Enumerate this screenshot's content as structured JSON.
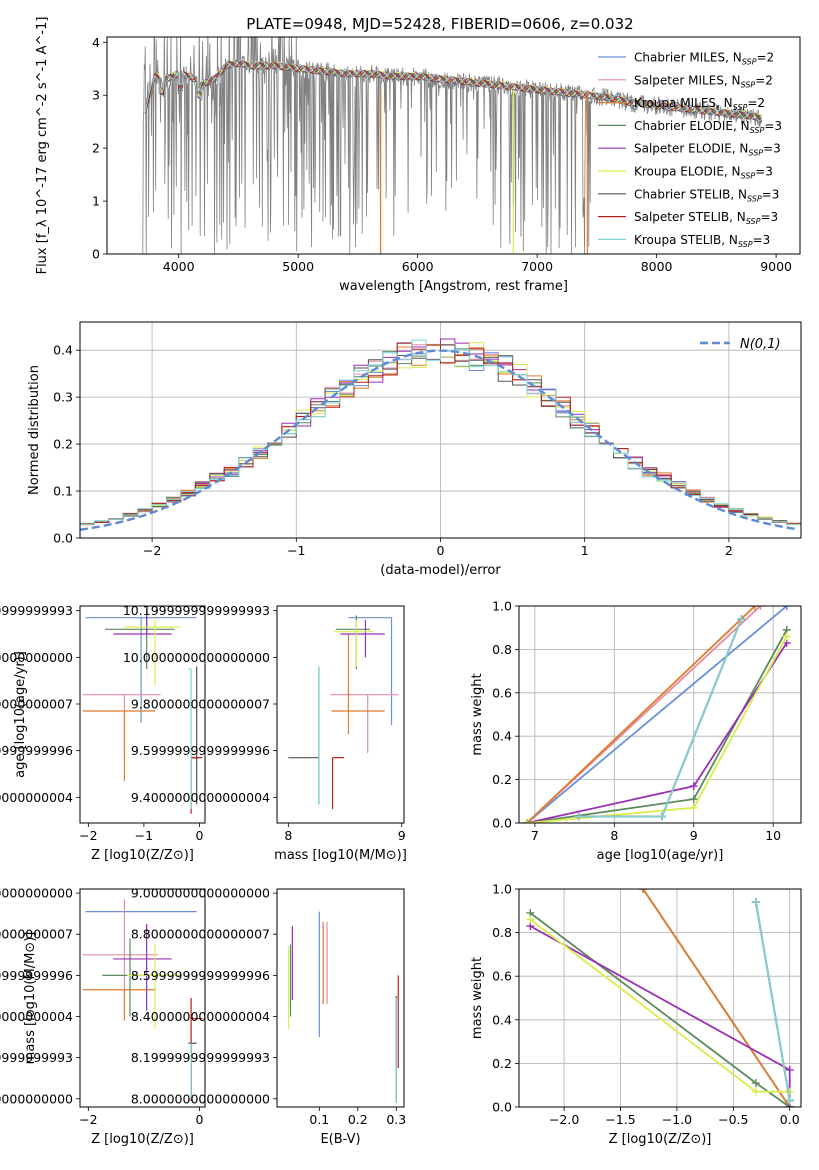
{
  "figure": {
    "title": "PLATE=0948, MJD=52428, FIBERID=0606, z=0.032",
    "models": [
      {
        "name": "Chabrier MILES",
        "nssp": "2",
        "color": "#6a8fdc"
      },
      {
        "name": "Salpeter MILES",
        "nssp": "2",
        "color": "#e88aa6"
      },
      {
        "name": "Kroupa MILES",
        "nssp": "2",
        "color": "#e07b2a"
      },
      {
        "name": "Chabrier ELODIE",
        "nssp": "3",
        "color": "#5c8a5c"
      },
      {
        "name": "Salpeter ELODIE",
        "nssp": "3",
        "color": "#9a2fb5"
      },
      {
        "name": "Kroupa ELODIE",
        "nssp": "3",
        "color": "#d8ee4a"
      },
      {
        "name": "Chabrier STELIB",
        "nssp": "3",
        "color": "#555555"
      },
      {
        "name": "Salpeter STELIB",
        "nssp": "3",
        "color": "#b81e1e"
      },
      {
        "name": "Kroupa STELIB",
        "nssp": "3",
        "color": "#7fd6d8"
      }
    ]
  },
  "chart_data": [
    {
      "id": "spectrum",
      "type": "line",
      "title": "PLATE=0948, MJD=52428, FIBERID=0606, z=0.032",
      "xlabel": "wavelength [Angstrom, rest frame]",
      "ylabel": "Flux [f_λ 10^-17 erg cm^-2 s^-1 A^-1]",
      "xlim": [
        3400,
        9200
      ],
      "ylim": [
        0,
        4.1
      ],
      "xticks": [
        4000,
        5000,
        6000,
        7000,
        8000,
        9000
      ],
      "yticks": [
        0,
        1,
        2,
        3,
        4
      ],
      "legend": "top-right",
      "data_color": "#808080",
      "model_continuum": {
        "x": [
          3720,
          3800,
          3900,
          4000,
          4100,
          4200,
          4300,
          4400,
          4500,
          4600,
          4800,
          5000,
          5200,
          5400,
          5600,
          5800,
          6000,
          6200,
          6400,
          6600,
          6800,
          7000,
          7200,
          7400,
          7600,
          7800,
          8000,
          8200,
          8400,
          8600,
          8800,
          8880
        ],
        "y": [
          2.7,
          3.35,
          3.3,
          3.4,
          3.35,
          3.2,
          3.3,
          3.55,
          3.6,
          3.55,
          3.55,
          3.5,
          3.45,
          3.4,
          3.4,
          3.35,
          3.35,
          3.3,
          3.25,
          3.2,
          3.15,
          3.1,
          3.05,
          3.0,
          2.95,
          2.85,
          2.8,
          2.75,
          2.7,
          2.65,
          2.6,
          2.55
        ]
      },
      "drop_lines": [
        {
          "x": 5690,
          "color": "#e07b2a"
        },
        {
          "x": 7420,
          "color": "#e07b2a"
        },
        {
          "x": 6800,
          "color": "#d8ee4a"
        }
      ]
    },
    {
      "id": "residuals",
      "type": "histogram",
      "xlabel": "(data-model)/error",
      "ylabel": "Normed distribution",
      "xlim": [
        -2.5,
        2.5
      ],
      "ylim": [
        0,
        0.46
      ],
      "xticks": [
        -2,
        -1,
        0,
        1,
        2
      ],
      "yticks": [
        0.0,
        0.1,
        0.2,
        0.3,
        0.4
      ],
      "bin_width": 0.1,
      "grid": true,
      "legend": "top-right",
      "reference_label": "N(0,1)",
      "reference_color": "#5b8bd6"
    },
    {
      "id": "age-vs-Z",
      "type": "errorbar",
      "xlabel": "Z [log10(Z/Z⊙)]",
      "ylabel": "age [log10(age/yr)]",
      "xlim": [
        -2.15,
        0.1
      ],
      "ylim": [
        9.29,
        10.22
      ],
      "xticks": [
        -2,
        -1,
        0
      ],
      "yticks": [
        9.4,
        9.6,
        9.8,
        10.0,
        10.2
      ],
      "points": [
        {
          "model": 0,
          "x": -1.05,
          "xerr": [
            1.0,
            1.0
          ],
          "y": 10.17,
          "yerr": [
            0.45,
            0.0
          ]
        },
        {
          "model": 1,
          "x": -1.35,
          "xerr": [
            0.75,
            0.65
          ],
          "y": 9.84,
          "yerr": [
            0.26,
            0.0
          ]
        },
        {
          "model": 2,
          "x": -1.35,
          "xerr": [
            0.75,
            0.55
          ],
          "y": 9.77,
          "yerr": [
            0.3,
            0.0
          ]
        },
        {
          "model": 3,
          "x": -0.95,
          "xerr": [
            0.75,
            0.5
          ],
          "y": 10.12,
          "yerr": [
            0.17,
            0.06
          ]
        },
        {
          "model": 4,
          "x": -0.95,
          "xerr": [
            0.6,
            0.45
          ],
          "y": 10.1,
          "yerr": [
            0.0,
            0.1
          ]
        },
        {
          "model": 5,
          "x": -0.8,
          "xerr": [
            0.55,
            0.45
          ],
          "y": 10.13,
          "yerr": [
            0.25,
            0.03
          ]
        },
        {
          "model": 6,
          "x": -0.05,
          "xerr": [
            0.1,
            0.05
          ],
          "y": 9.57,
          "yerr": [
            0.2,
            0.39
          ]
        },
        {
          "model": 7,
          "x": -0.15,
          "xerr": [
            0.0,
            0.2
          ],
          "y": 9.57,
          "yerr": [
            0.24,
            0.0
          ]
        },
        {
          "model": 8,
          "x": -0.15,
          "xerr": [
            0.05,
            0.0
          ],
          "y": 9.95,
          "yerr": [
            0.6,
            0.0
          ]
        }
      ]
    },
    {
      "id": "age-vs-mass",
      "type": "errorbar",
      "xlabel": "mass [log10(M/M⊙)]",
      "xlim": [
        7.9,
        9.02
      ],
      "ylim": [
        9.29,
        10.22
      ],
      "xticks": [
        8,
        9
      ],
      "yticks": [
        9.4,
        9.6,
        9.8,
        10.0,
        10.2
      ],
      "points": [
        {
          "model": 0,
          "x": 8.91,
          "xerr": [
            0.38,
            0.0
          ],
          "y": 10.17,
          "yerr": [
            0.46,
            0.0
          ]
        },
        {
          "model": 1,
          "x": 8.7,
          "xerr": [
            0.33,
            0.27
          ],
          "y": 9.84,
          "yerr": [
            0.25,
            0.0
          ]
        },
        {
          "model": 2,
          "x": 8.53,
          "xerr": [
            0.15,
            0.32
          ],
          "y": 9.77,
          "yerr": [
            0.1,
            0.33
          ]
        },
        {
          "model": 3,
          "x": 8.6,
          "xerr": [
            0.18,
            0.12
          ],
          "y": 10.12,
          "yerr": [
            0.17,
            0.06
          ]
        },
        {
          "model": 4,
          "x": 8.68,
          "xerr": [
            0.22,
            0.17
          ],
          "y": 10.1,
          "yerr": [
            0.1,
            0.06
          ]
        },
        {
          "model": 5,
          "x": 8.6,
          "xerr": [
            0.2,
            0.15
          ],
          "y": 10.11,
          "yerr": [
            0.15,
            0.05
          ]
        },
        {
          "model": 6,
          "x": 8.27,
          "xerr": [
            0.27,
            0.0
          ],
          "y": 9.57,
          "yerr": [
            0.2,
            0.39
          ]
        },
        {
          "model": 7,
          "x": 8.39,
          "xerr": [
            0.0,
            0.1
          ],
          "y": 9.57,
          "yerr": [
            0.22,
            0.0
          ]
        },
        {
          "model": 8,
          "x": 8.27,
          "xerr": [
            0.0,
            0.0
          ],
          "y": 9.57,
          "yerr": [
            0.2,
            0.39
          ]
        }
      ]
    },
    {
      "id": "mass-weight-vs-age",
      "type": "line",
      "xlabel": "age [log10(age/yr)]",
      "ylabel": "mass weight",
      "xlim": [
        6.8,
        10.35
      ],
      "ylim": [
        0,
        1.0
      ],
      "xticks": [
        7,
        8,
        9,
        10
      ],
      "yticks": [
        0.0,
        0.2,
        0.4,
        0.6,
        0.8,
        1.0
      ],
      "grid": true,
      "series": [
        {
          "model": 0,
          "x": [
            6.9,
            10.17
          ],
          "y": [
            0.0,
            1.0
          ]
        },
        {
          "model": 1,
          "x": [
            6.9,
            9.84
          ],
          "y": [
            0.0,
            1.0
          ]
        },
        {
          "model": 2,
          "x": [
            6.9,
            9.77
          ],
          "y": [
            0.0,
            1.0
          ]
        },
        {
          "model": 3,
          "x": [
            6.9,
            9.0,
            10.17
          ],
          "y": [
            0.0,
            0.11,
            0.89
          ]
        },
        {
          "model": 4,
          "x": [
            6.9,
            9.0,
            10.17
          ],
          "y": [
            0.0,
            0.17,
            0.83
          ]
        },
        {
          "model": 5,
          "x": [
            6.9,
            9.0,
            10.17
          ],
          "y": [
            0.0,
            0.07,
            0.86
          ]
        },
        {
          "model": 6,
          "x": [
            7.55,
            8.6,
            9.6
          ],
          "y": [
            0.03,
            0.03,
            0.94
          ]
        },
        {
          "model": 7,
          "x": [
            7.55,
            8.6,
            9.6
          ],
          "y": [
            0.03,
            0.03,
            0.94
          ]
        },
        {
          "model": 8,
          "x": [
            7.55,
            8.6,
            9.6
          ],
          "y": [
            0.03,
            0.03,
            0.94
          ]
        }
      ]
    },
    {
      "id": "mass-vs-Z",
      "type": "errorbar",
      "xlabel": "Z [log10(Z/Z⊙)]",
      "ylabel": "mass [log10(M/M⊙)]",
      "xlim": [
        -2.15,
        0.1
      ],
      "ylim": [
        7.96,
        9.02
      ],
      "xticks": [
        -2,
        0
      ],
      "yticks": [
        8.0,
        8.2,
        8.4,
        8.6,
        8.8,
        9.0
      ],
      "points": [
        {
          "model": 0,
          "x": -1.05,
          "xerr": [
            1.0,
            1.0
          ],
          "y": 8.91,
          "yerr": [
            0.0,
            0.0
          ]
        },
        {
          "model": 1,
          "x": -1.35,
          "xerr": [
            0.75,
            0.6
          ],
          "y": 8.7,
          "yerr": [
            0.3,
            0.27
          ]
        },
        {
          "model": 2,
          "x": -1.35,
          "xerr": [
            0.75,
            0.55
          ],
          "y": 8.53,
          "yerr": [
            0.15,
            0.0
          ]
        },
        {
          "model": 3,
          "x": -1.25,
          "xerr": [
            0.5,
            0.5
          ],
          "y": 8.6,
          "yerr": [
            0.2,
            0.18
          ]
        },
        {
          "model": 4,
          "x": -0.95,
          "xerr": [
            0.6,
            0.45
          ],
          "y": 8.68,
          "yerr": [
            0.25,
            0.17
          ]
        },
        {
          "model": 5,
          "x": -0.8,
          "xerr": [
            0.5,
            0.45
          ],
          "y": 8.6,
          "yerr": [
            0.26,
            0.15
          ]
        },
        {
          "model": 6,
          "x": -0.15,
          "xerr": [
            0.05,
            0.1
          ],
          "y": 8.27,
          "yerr": [
            0.27,
            0.0
          ]
        },
        {
          "model": 7,
          "x": -0.15,
          "xerr": [
            0.0,
            0.2
          ],
          "y": 8.39,
          "yerr": [
            0.4,
            0.1
          ]
        },
        {
          "model": 8,
          "x": -0.15,
          "xerr": [
            0.0,
            0.0
          ],
          "y": 8.27,
          "yerr": [
            0.27,
            0.0
          ]
        }
      ]
    },
    {
      "id": "mass-vs-EBV",
      "type": "errorbar",
      "xlabel": "E(B-V)",
      "xlim": [
        -0.01,
        0.32
      ],
      "ylim": [
        7.96,
        9.02
      ],
      "xticks": [
        0.1,
        0.2,
        0.3
      ],
      "yticks": [
        8.0,
        8.2,
        8.4,
        8.6,
        8.8,
        9.0
      ],
      "points": [
        {
          "model": 0,
          "x": 0.1,
          "y": 8.6,
          "yerr": [
            0.3,
            0.31
          ]
        },
        {
          "model": 1,
          "x": 0.12,
          "y": 8.66,
          "yerr": [
            0.2,
            0.2
          ]
        },
        {
          "model": 2,
          "x": 0.11,
          "y": 8.66,
          "yerr": [
            0.2,
            0.2
          ]
        },
        {
          "model": 3,
          "x": 0.025,
          "y": 8.6,
          "yerr": [
            0.2,
            0.15
          ]
        },
        {
          "model": 4,
          "x": 0.03,
          "y": 8.68,
          "yerr": [
            0.2,
            0.16
          ]
        },
        {
          "model": 5,
          "x": 0.02,
          "y": 8.54,
          "yerr": [
            0.2,
            0.2
          ]
        },
        {
          "model": 6,
          "x": 0.3,
          "y": 8.25,
          "yerr": [
            0.27,
            0.25
          ]
        },
        {
          "model": 7,
          "x": 0.305,
          "y": 8.38,
          "yerr": [
            0.23,
            0.22
          ]
        },
        {
          "model": 8,
          "x": 0.3,
          "y": 8.25,
          "yerr": [
            0.27,
            0.24
          ]
        }
      ]
    },
    {
      "id": "mass-weight-vs-Z",
      "type": "line",
      "xlabel": "Z [log10(Z/Z⊙)]",
      "ylabel": "mass weight",
      "xlim": [
        -2.4,
        0.1
      ],
      "ylim": [
        0,
        1.0
      ],
      "xticks": [
        -2.0,
        -1.5,
        -1.0,
        -0.5,
        0.0
      ],
      "yticks": [
        0.0,
        0.2,
        0.4,
        0.6,
        0.8,
        1.0
      ],
      "grid": true,
      "series": [
        {
          "model": 0,
          "x": [
            -1.3,
            0.0
          ],
          "y": [
            1.0,
            0.0
          ]
        },
        {
          "model": 1,
          "x": [
            -1.3,
            0.0
          ],
          "y": [
            1.0,
            0.0
          ]
        },
        {
          "model": 2,
          "x": [
            -1.3,
            0.0
          ],
          "y": [
            1.0,
            0.0
          ]
        },
        {
          "model": 3,
          "x": [
            -2.3,
            -0.3,
            0.0
          ],
          "y": [
            0.89,
            0.11,
            0.0
          ]
        },
        {
          "model": 4,
          "x": [
            -2.3,
            0.0,
            0.0
          ],
          "y": [
            0.83,
            0.17,
            0.0
          ]
        },
        {
          "model": 5,
          "x": [
            -2.3,
            -0.3,
            0.0
          ],
          "y": [
            0.86,
            0.07,
            0.07
          ]
        },
        {
          "model": 6,
          "x": [
            -0.3,
            0.0,
            0.0
          ],
          "y": [
            0.94,
            0.03,
            0.03
          ]
        },
        {
          "model": 7,
          "x": [
            -0.3,
            0.0,
            0.0
          ],
          "y": [
            0.94,
            0.03,
            0.03
          ]
        },
        {
          "model": 8,
          "x": [
            -0.3,
            0.0,
            0.0
          ],
          "y": [
            0.94,
            0.03,
            0.03
          ]
        }
      ]
    }
  ]
}
